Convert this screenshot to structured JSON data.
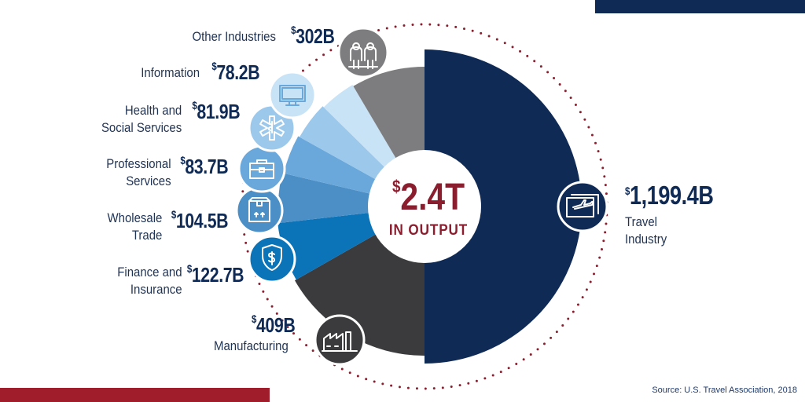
{
  "chart_data": {
    "type": "pie",
    "center_value": "2.4T",
    "center_currency": "$",
    "center_label": "IN OUTPUT",
    "segments": [
      {
        "name": "Travel Industry",
        "name_lines": [
          "Travel",
          "Industry"
        ],
        "value": 1199.4,
        "display": "1,199.4B",
        "color": "#0f2a55",
        "icon": "ticket-plane-icon"
      },
      {
        "name": "Manufacturing",
        "name_lines": [
          "Manufacturing"
        ],
        "value": 409,
        "display": "409B",
        "color": "#3b3b3d",
        "icon": "factory-icon"
      },
      {
        "name": "Finance and Insurance",
        "name_lines": [
          "Finance and",
          "Insurance"
        ],
        "value": 122.7,
        "display": "122.7B",
        "color": "#0b73b8",
        "icon": "shield-dollar-icon"
      },
      {
        "name": "Wholesale Trade",
        "name_lines": [
          "Wholesale",
          "Trade"
        ],
        "value": 104.5,
        "display": "104.5B",
        "color": "#4c8fc6",
        "icon": "package-icon"
      },
      {
        "name": "Professional Services",
        "name_lines": [
          "Professional",
          "Services"
        ],
        "value": 83.7,
        "display": "83.7B",
        "color": "#6aa8dc",
        "icon": "briefcase-icon"
      },
      {
        "name": "Health and Social Services",
        "name_lines": [
          "Health and",
          "Social Services"
        ],
        "value": 81.9,
        "display": "81.9B",
        "color": "#9cc8ec",
        "icon": "medical-star-icon"
      },
      {
        "name": "Information",
        "name_lines": [
          "Information"
        ],
        "value": 78.2,
        "display": "78.2B",
        "color": "#c8e2f6",
        "icon": "monitor-icon"
      },
      {
        "name": "Other Industries",
        "name_lines": [
          "Other Industries"
        ],
        "value": 302,
        "display": "302B",
        "color": "#7d7d7f",
        "icon": "people-icon"
      }
    ],
    "currency_symbol": "$"
  },
  "source": "Source: U.S. Travel Association, 2018",
  "colors": {
    "accent_red": "#8b1e2e",
    "navy": "#0f2a55",
    "dots": "#8b1e2e"
  }
}
